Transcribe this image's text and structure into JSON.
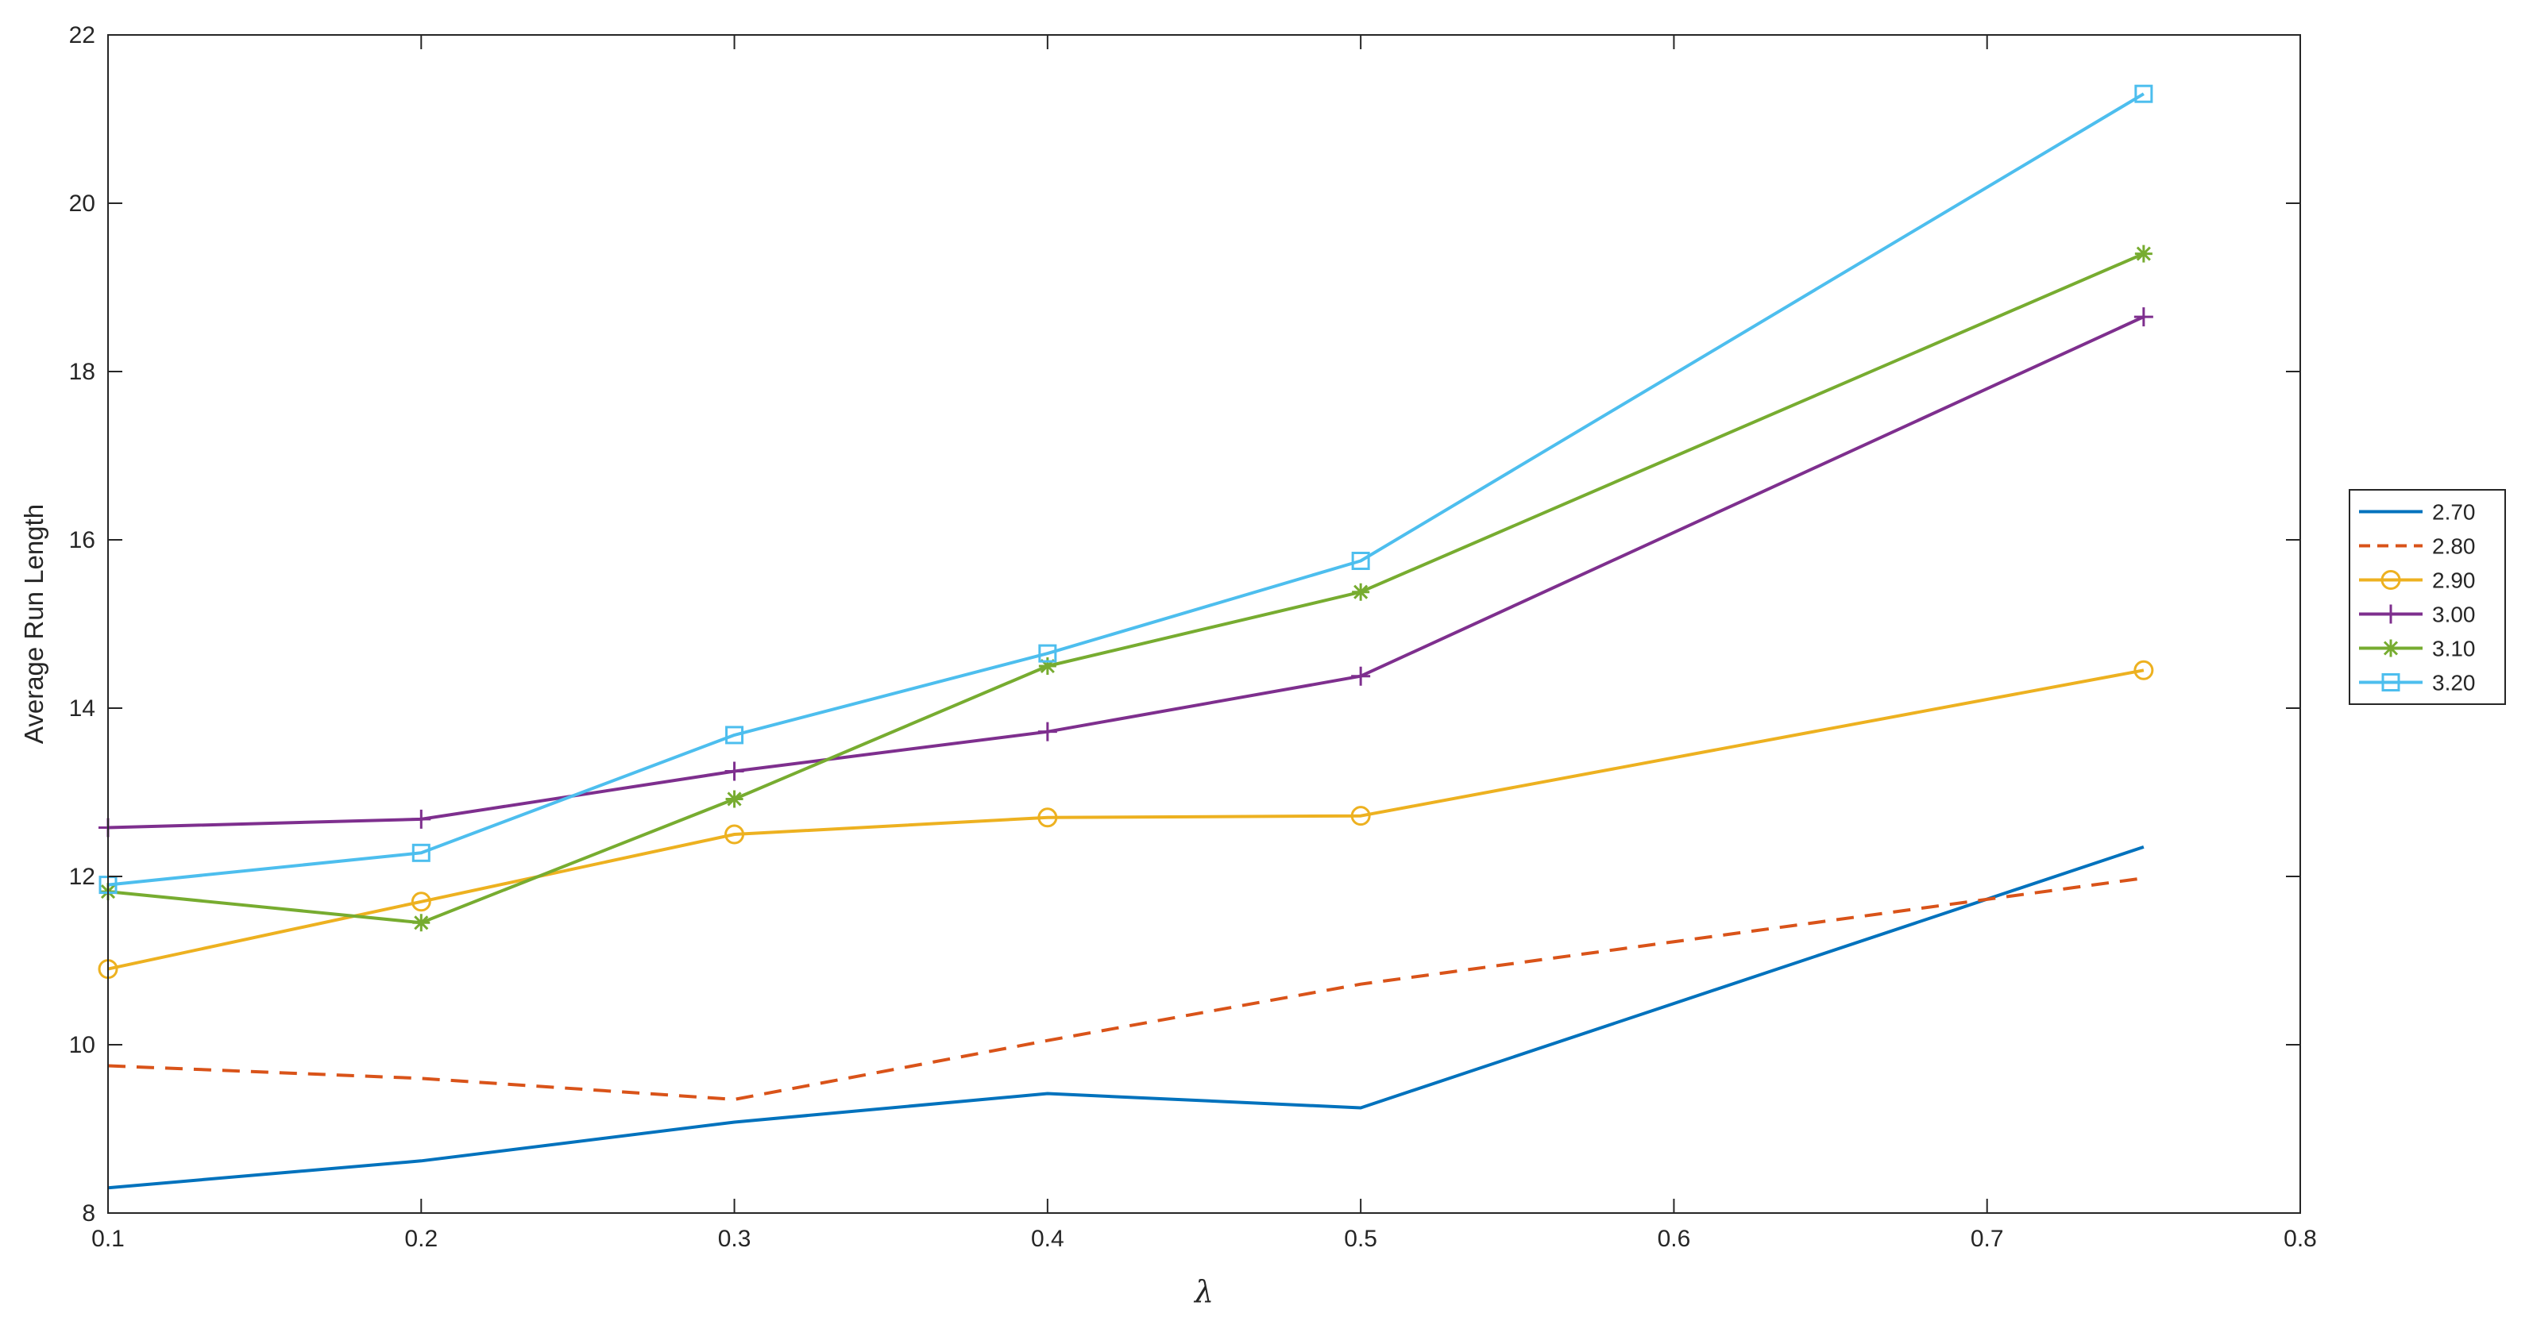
{
  "chart_data": {
    "type": "line",
    "title": "",
    "xlabel": "λ",
    "ylabel": "Average Run Length",
    "xlim": [
      0.1,
      0.8
    ],
    "ylim": [
      8,
      22
    ],
    "x_ticks": [
      0.1,
      0.2,
      0.3,
      0.4,
      0.5,
      0.6,
      0.7,
      0.8
    ],
    "x_tick_labels": [
      "0.1",
      "0.2",
      "0.3",
      "0.4",
      "0.5",
      "0.6",
      "0.7",
      "0.8"
    ],
    "y_ticks": [
      8,
      10,
      12,
      14,
      16,
      18,
      20,
      22
    ],
    "y_tick_labels": [
      "8",
      "10",
      "12",
      "14",
      "16",
      "18",
      "20",
      "22"
    ],
    "grid": false,
    "legend_position": "outside-right",
    "x": [
      0.1,
      0.2,
      0.3,
      0.4,
      0.5,
      0.75
    ],
    "series": [
      {
        "name": "2.70",
        "color": "#0072BD",
        "line_style": "solid",
        "marker": "none",
        "values": [
          8.3,
          8.62,
          9.08,
          9.42,
          9.25,
          12.35
        ]
      },
      {
        "name": "2.80",
        "color": "#D95319",
        "line_style": "dashed",
        "marker": "none",
        "values": [
          9.75,
          9.6,
          9.35,
          10.05,
          10.72,
          11.98
        ]
      },
      {
        "name": "2.90",
        "color": "#EDB120",
        "line_style": "solid",
        "marker": "circle",
        "values": [
          10.9,
          11.7,
          12.5,
          12.7,
          12.72,
          14.45
        ]
      },
      {
        "name": "3.00",
        "color": "#7E2F8E",
        "line_style": "solid",
        "marker": "plus",
        "values": [
          12.58,
          12.68,
          13.25,
          13.72,
          14.38,
          18.65
        ]
      },
      {
        "name": "3.10",
        "color": "#77AC30",
        "line_style": "solid",
        "marker": "asterisk",
        "values": [
          11.82,
          11.45,
          12.92,
          14.5,
          15.38,
          19.4
        ]
      },
      {
        "name": "3.20",
        "color": "#4DBEEE",
        "line_style": "solid",
        "marker": "square",
        "values": [
          11.9,
          12.28,
          13.68,
          14.65,
          15.75,
          21.3
        ]
      }
    ]
  }
}
